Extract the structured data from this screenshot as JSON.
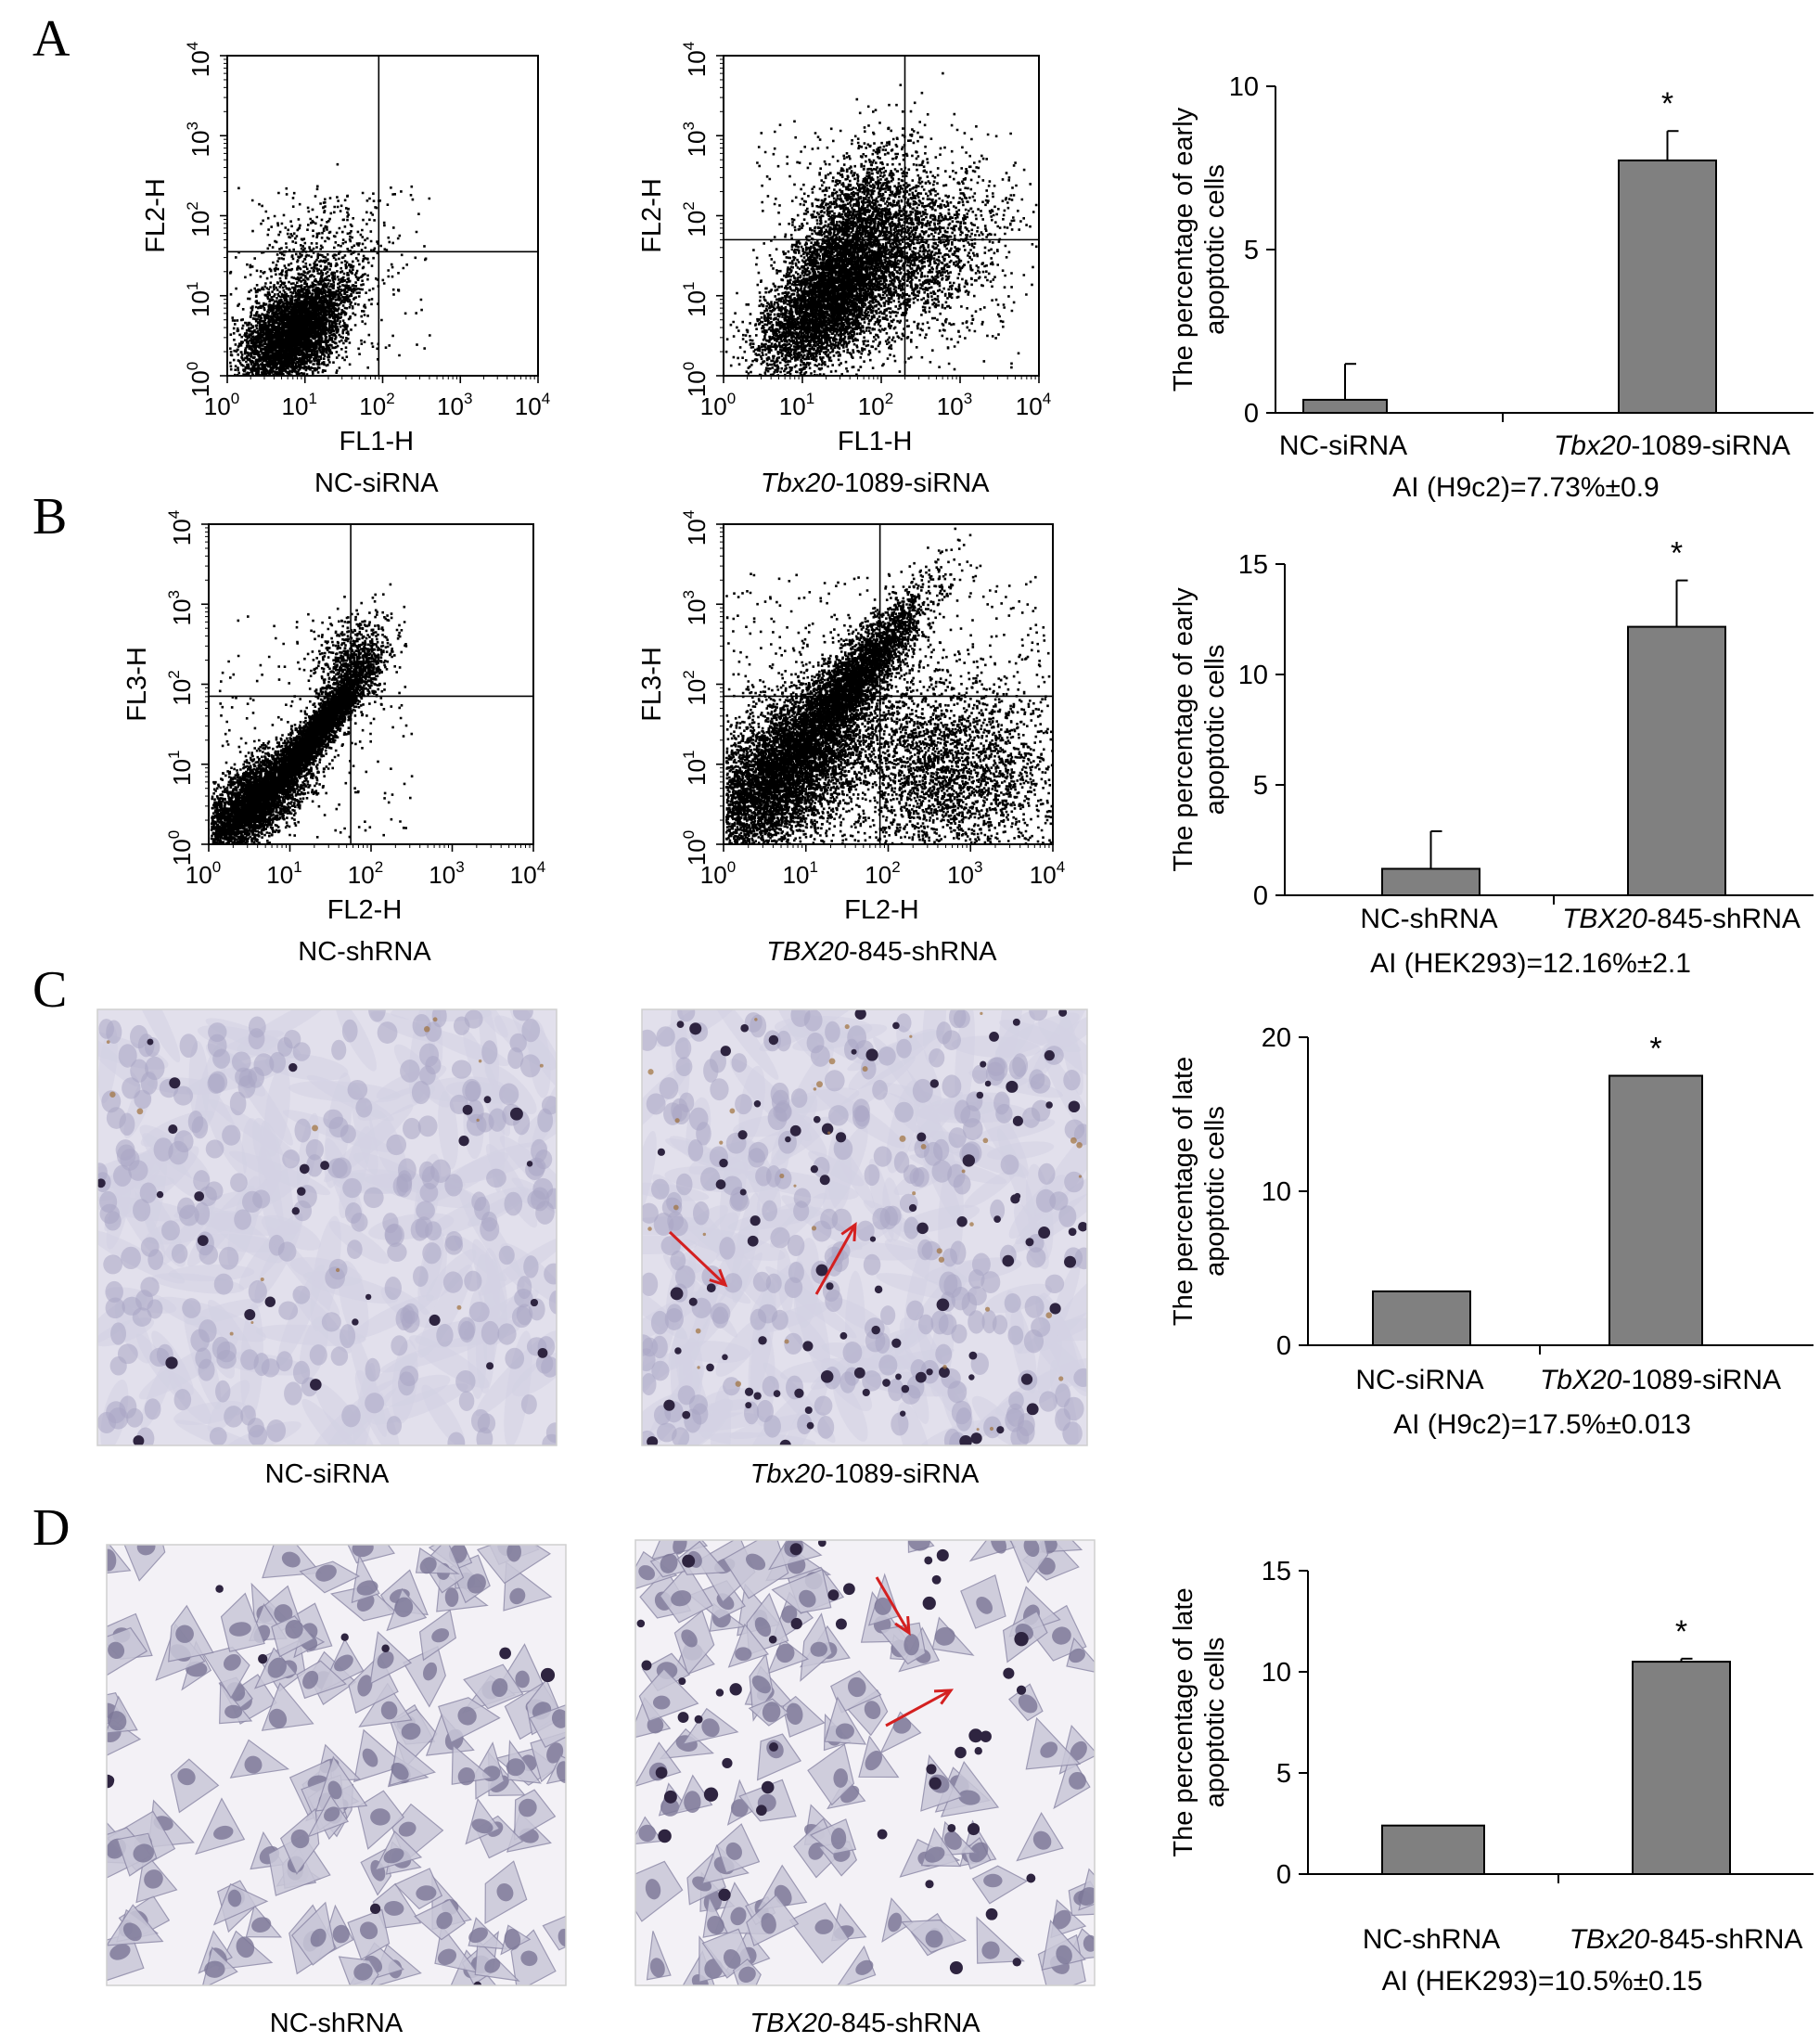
{
  "panels": [
    {
      "letter": "A",
      "left": {
        "kind": "flow",
        "xlabel": "FL1-H",
        "ylabel": "FL2-H",
        "caption_italic": "",
        "caption_rest": "NC-siRNA",
        "gate_x": 1.95,
        "gate_y": 1.55,
        "pattern": "A1"
      },
      "mid": {
        "kind": "flow",
        "xlabel": "FL1-H",
        "ylabel": "FL2-H",
        "caption_italic": "Tbx20",
        "caption_rest": "-1089-siRNA",
        "gate_x": 2.3,
        "gate_y": 1.7,
        "pattern": "A2"
      },
      "bar": {
        "ylabel_line1": "The percentage of early",
        "ylabel_line2": "apoptotic cells",
        "note": "AI (H9c2)=7.73%±0.9",
        "chart_data": {
          "type": "bar",
          "categories": [
            "NC-siRNA",
            "Tbx20-1089-siRNA"
          ],
          "cat_italic": [
            "",
            ""
          ],
          "cat_parts": [
            [
              "",
              "NC-siRNA"
            ],
            [
              "Tbx20",
              "-1089-siRNA"
            ]
          ],
          "values": [
            0.4,
            7.73
          ],
          "errors": [
            1.1,
            0.9
          ],
          "ylim": [
            0,
            10
          ],
          "yticks": [
            0,
            5,
            10
          ],
          "significance": [
            "",
            "*"
          ]
        }
      }
    },
    {
      "letter": "B",
      "left": {
        "kind": "flow",
        "xlabel": "FL2-H",
        "ylabel": "FL3-H",
        "caption_italic": "",
        "caption_rest": "NC-shRNA",
        "gate_x": 1.75,
        "gate_y": 1.85,
        "pattern": "B1"
      },
      "mid": {
        "kind": "flow",
        "xlabel": "FL2-H",
        "ylabel": "FL3-H",
        "caption_italic": "TBX20",
        "caption_rest": "-845-shRNA",
        "gate_x": 1.9,
        "gate_y": 1.85,
        "pattern": "B2"
      },
      "bar": {
        "ylabel_line1": "The percentage of early",
        "ylabel_line2": "apoptotic cells",
        "note": "AI (HEK293)=12.16%±2.1",
        "chart_data": {
          "type": "bar",
          "categories": [
            "NC-shRNA",
            "TBX20-845-shRNA"
          ],
          "cat_parts": [
            [
              "",
              "NC-shRNA"
            ],
            [
              "TBX20",
              "-845-shRNA"
            ]
          ],
          "values": [
            1.2,
            12.16
          ],
          "errors": [
            1.7,
            2.1
          ],
          "ylim": [
            0,
            15
          ],
          "yticks": [
            0,
            5,
            10,
            15
          ],
          "significance": [
            "",
            "*"
          ]
        }
      }
    },
    {
      "letter": "C",
      "left": {
        "kind": "micro",
        "caption_italic": "",
        "caption_rest": "NC-siRNA",
        "style": "sparse"
      },
      "mid": {
        "kind": "micro",
        "caption_italic": "Tbx20",
        "caption_rest": "-1089-siRNA",
        "style": "dense"
      },
      "bar": {
        "ylabel_line1": "The percentage of late",
        "ylabel_line2": "apoptotic cells",
        "note": "AI (H9c2)=17.5%±0.013",
        "chart_data": {
          "type": "bar",
          "categories": [
            "NC-siRNA",
            "TbX20-1089-siRNA"
          ],
          "cat_parts": [
            [
              "",
              "NC-siRNA"
            ],
            [
              "TbX20",
              "-1089-siRNA"
            ]
          ],
          "values": [
            3.5,
            17.5
          ],
          "errors": [
            0,
            0
          ],
          "ylim": [
            0,
            20
          ],
          "yticks": [
            0,
            10,
            20
          ],
          "significance": [
            "",
            "*"
          ]
        }
      }
    },
    {
      "letter": "D",
      "left": {
        "kind": "micro",
        "caption_italic": "",
        "caption_rest": "NC-shRNA",
        "style": "hek"
      },
      "mid": {
        "kind": "micro",
        "caption_italic": "TBX20",
        "caption_rest": "-845-shRNA",
        "style": "hek2"
      },
      "bar": {
        "ylabel_line1": "The percentage of late",
        "ylabel_line2": "apoptotic cells",
        "note": "AI (HEK293)=10.5%±0.15",
        "chart_data": {
          "type": "bar",
          "categories": [
            "NC-shRNA",
            "TBx20-845-shRNA"
          ],
          "cat_parts": [
            [
              "",
              "NC-shRNA"
            ],
            [
              "TBx20",
              "-845-shRNA"
            ]
          ],
          "values": [
            2.4,
            10.5
          ],
          "errors": [
            0,
            0.15
          ],
          "ylim": [
            0,
            15
          ],
          "yticks": [
            0,
            5,
            10,
            15
          ],
          "significance": [
            "",
            "*"
          ]
        }
      }
    }
  ],
  "flow_tick_labels": [
    "10",
    "10",
    "10",
    "10",
    "10"
  ],
  "flow_tick_exps": [
    "0",
    "1",
    "2",
    "3",
    "4"
  ],
  "colors": {
    "bar_fill": "#808080",
    "bar_stroke": "#000000",
    "arrow": "#d42020",
    "micro_bg": "#e2e0ec",
    "nucleus": "#a9a6c4",
    "dark_cell": "#2e2440"
  }
}
